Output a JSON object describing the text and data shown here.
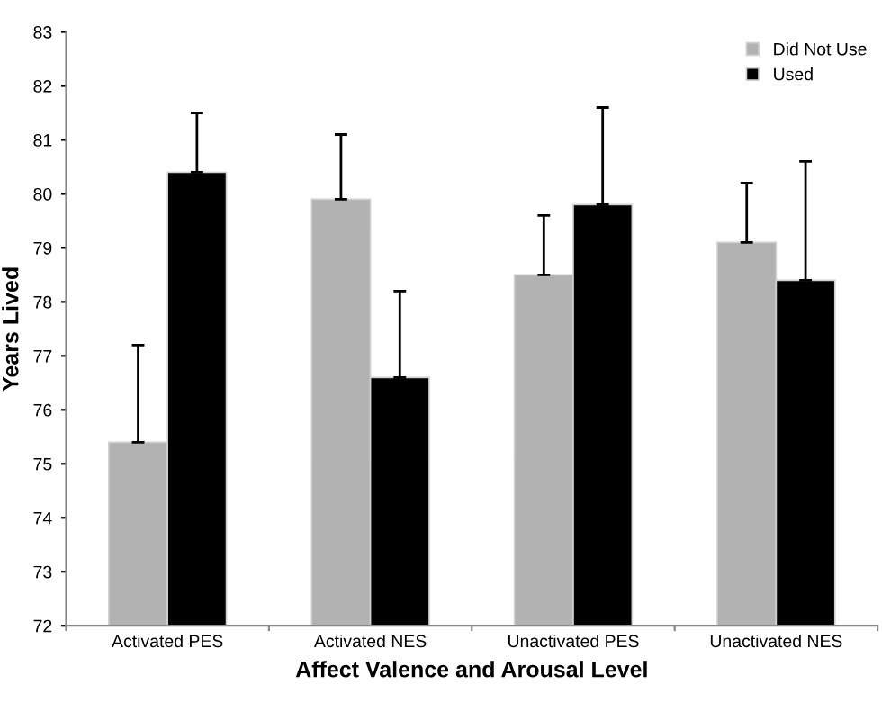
{
  "chart_data": {
    "type": "bar",
    "xlabel": "Affect Valence and Arousal Level",
    "ylabel": "Years Lived",
    "categories": [
      "Activated PES",
      "Activated NES",
      "Unactivated PES",
      "Unactivated NES"
    ],
    "series": [
      {
        "name": "Did Not Use",
        "color": "#b2b2b2",
        "values": [
          75.4,
          79.9,
          78.5,
          79.1
        ],
        "errors": [
          [
            75.4,
            77.2
          ],
          [
            79.9,
            81.1
          ],
          [
            78.5,
            79.6
          ],
          [
            79.1,
            80.2
          ]
        ]
      },
      {
        "name": "Used",
        "color": "#000000",
        "values": [
          80.4,
          76.6,
          79.8,
          78.4
        ],
        "errors": [
          [
            80.4,
            81.5
          ],
          [
            76.6,
            78.2
          ],
          [
            79.8,
            81.6
          ],
          [
            78.4,
            80.6
          ]
        ]
      }
    ],
    "ylim": [
      72,
      83
    ],
    "yticks": [
      72,
      73,
      74,
      75,
      76,
      77,
      78,
      79,
      80,
      81,
      82,
      83
    ],
    "grid": false,
    "legend": "top right"
  }
}
